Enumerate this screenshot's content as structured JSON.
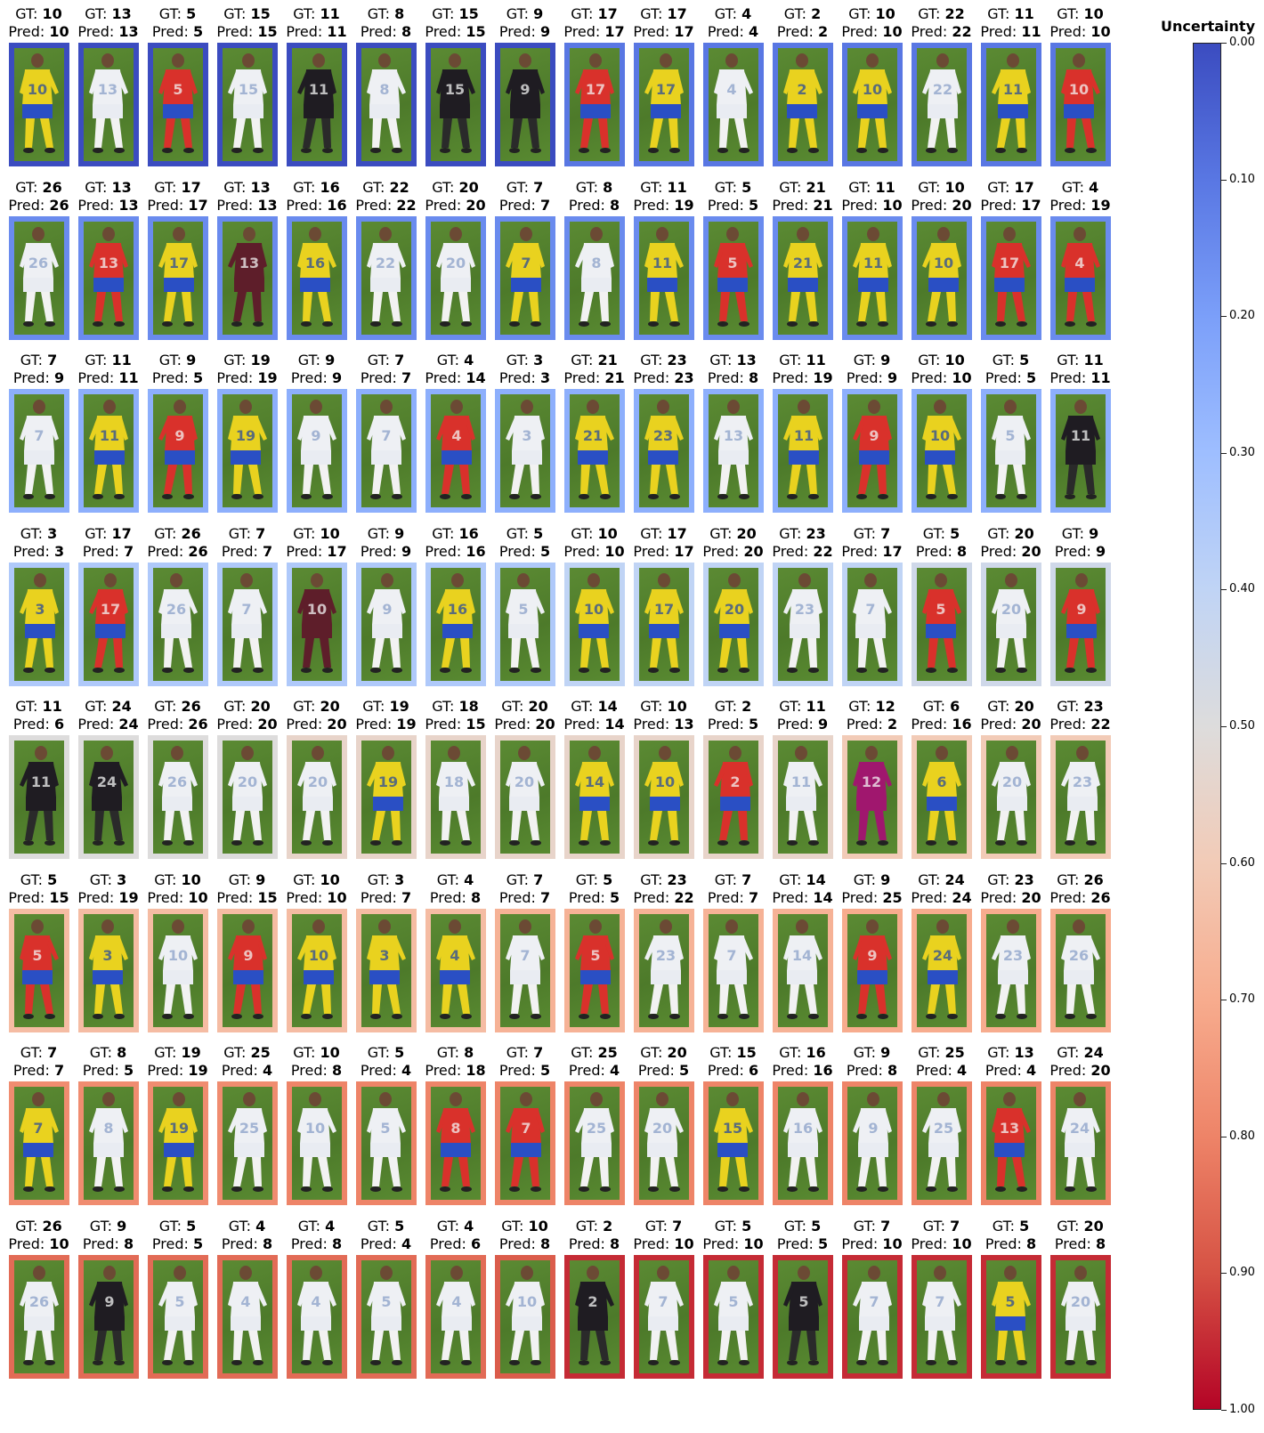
{
  "chart_data": {
    "type": "image-grid",
    "colorbar": {
      "title": "Uncertainty",
      "range": [
        0,
        1
      ],
      "ticks": [
        "0.00",
        "0.10",
        "0.20",
        "0.30",
        "0.40",
        "0.50",
        "0.60",
        "0.70",
        "0.80",
        "0.90",
        "1.00"
      ],
      "colormap": [
        "#3b4cc0",
        "#5977e3",
        "#7b9ff9",
        "#9ebeff",
        "#c0d4f5",
        "#dddcdc",
        "#f2cbb7",
        "#f7ac8e",
        "#ee8468",
        "#d65244",
        "#b40426"
      ]
    },
    "label_prefix_gt": "GT: ",
    "label_prefix_pred": "Pred: ",
    "rows": [
      {
        "uncertainty": [
          0.0,
          0.0,
          0.0,
          0.0,
          0.0,
          0.0,
          0.0,
          0.0,
          0.1,
          0.1,
          0.1,
          0.1,
          0.1,
          0.1,
          0.1,
          0.1
        ],
        "items": [
          {
            "gt": "10",
            "pred": "10",
            "kit": "yellow"
          },
          {
            "gt": "13",
            "pred": "13",
            "kit": "white"
          },
          {
            "gt": "5",
            "pred": "5",
            "kit": "red"
          },
          {
            "gt": "15",
            "pred": "15",
            "kit": "white"
          },
          {
            "gt": "11",
            "pred": "11",
            "kit": "black"
          },
          {
            "gt": "8",
            "pred": "8",
            "kit": "white"
          },
          {
            "gt": "15",
            "pred": "15",
            "kit": "black"
          },
          {
            "gt": "9",
            "pred": "9",
            "kit": "black"
          },
          {
            "gt": "17",
            "pred": "17",
            "kit": "red"
          },
          {
            "gt": "17",
            "pred": "17",
            "kit": "yellow"
          },
          {
            "gt": "4",
            "pred": "4",
            "kit": "white"
          },
          {
            "gt": "2",
            "pred": "2",
            "kit": "yellow"
          },
          {
            "gt": "10",
            "pred": "10",
            "kit": "yellow"
          },
          {
            "gt": "22",
            "pred": "22",
            "kit": "white"
          },
          {
            "gt": "11",
            "pred": "11",
            "kit": "yellow"
          },
          {
            "gt": "10",
            "pred": "10",
            "kit": "red"
          }
        ]
      },
      {
        "uncertainty": [
          0.15,
          0.15,
          0.15,
          0.15,
          0.15,
          0.15,
          0.15,
          0.15,
          0.15,
          0.15,
          0.15,
          0.15,
          0.15,
          0.15,
          0.15,
          0.15
        ],
        "items": [
          {
            "gt": "26",
            "pred": "26",
            "kit": "white"
          },
          {
            "gt": "13",
            "pred": "13",
            "kit": "red"
          },
          {
            "gt": "17",
            "pred": "17",
            "kit": "yellow"
          },
          {
            "gt": "13",
            "pred": "13",
            "kit": "maroon"
          },
          {
            "gt": "16",
            "pred": "16",
            "kit": "yellow"
          },
          {
            "gt": "22",
            "pred": "22",
            "kit": "white"
          },
          {
            "gt": "20",
            "pred": "20",
            "kit": "white"
          },
          {
            "gt": "7",
            "pred": "7",
            "kit": "yellow"
          },
          {
            "gt": "8",
            "pred": "8",
            "kit": "white"
          },
          {
            "gt": "11",
            "pred": "19",
            "kit": "yellow"
          },
          {
            "gt": "5",
            "pred": "5",
            "kit": "red"
          },
          {
            "gt": "21",
            "pred": "21",
            "kit": "yellow"
          },
          {
            "gt": "11",
            "pred": "10",
            "kit": "yellow"
          },
          {
            "gt": "10",
            "pred": "20",
            "kit": "yellow"
          },
          {
            "gt": "17",
            "pred": "17",
            "kit": "red"
          },
          {
            "gt": "4",
            "pred": "19",
            "kit": "red"
          }
        ]
      },
      {
        "uncertainty": [
          0.25,
          0.25,
          0.25,
          0.25,
          0.25,
          0.25,
          0.25,
          0.25,
          0.25,
          0.25,
          0.25,
          0.25,
          0.25,
          0.25,
          0.25,
          0.25
        ],
        "items": [
          {
            "gt": "7",
            "pred": "9",
            "kit": "white"
          },
          {
            "gt": "11",
            "pred": "11",
            "kit": "yellow"
          },
          {
            "gt": "9",
            "pred": "5",
            "kit": "red"
          },
          {
            "gt": "19",
            "pred": "19",
            "kit": "yellow"
          },
          {
            "gt": "9",
            "pred": "9",
            "kit": "white"
          },
          {
            "gt": "7",
            "pred": "7",
            "kit": "white"
          },
          {
            "gt": "4",
            "pred": "14",
            "kit": "red"
          },
          {
            "gt": "3",
            "pred": "3",
            "kit": "white"
          },
          {
            "gt": "21",
            "pred": "21",
            "kit": "yellow"
          },
          {
            "gt": "23",
            "pred": "23",
            "kit": "yellow"
          },
          {
            "gt": "13",
            "pred": "8",
            "kit": "white"
          },
          {
            "gt": "11",
            "pred": "19",
            "kit": "yellow"
          },
          {
            "gt": "9",
            "pred": "9",
            "kit": "red"
          },
          {
            "gt": "10",
            "pred": "10",
            "kit": "yellow"
          },
          {
            "gt": "5",
            "pred": "5",
            "kit": "white"
          },
          {
            "gt": "11",
            "pred": "11",
            "kit": "black"
          }
        ]
      },
      {
        "uncertainty": [
          0.35,
          0.35,
          0.35,
          0.35,
          0.35,
          0.35,
          0.35,
          0.35,
          0.4,
          0.4,
          0.4,
          0.4,
          0.4,
          0.45,
          0.45,
          0.45
        ],
        "items": [
          {
            "gt": "3",
            "pred": "3",
            "kit": "yellow"
          },
          {
            "gt": "17",
            "pred": "7",
            "kit": "red"
          },
          {
            "gt": "26",
            "pred": "26",
            "kit": "white"
          },
          {
            "gt": "7",
            "pred": "7",
            "kit": "white"
          },
          {
            "gt": "10",
            "pred": "17",
            "kit": "maroon"
          },
          {
            "gt": "9",
            "pred": "9",
            "kit": "white"
          },
          {
            "gt": "16",
            "pred": "16",
            "kit": "yellow"
          },
          {
            "gt": "5",
            "pred": "5",
            "kit": "white"
          },
          {
            "gt": "10",
            "pred": "10",
            "kit": "yellow"
          },
          {
            "gt": "17",
            "pred": "17",
            "kit": "yellow"
          },
          {
            "gt": "20",
            "pred": "20",
            "kit": "yellow"
          },
          {
            "gt": "23",
            "pred": "22",
            "kit": "white"
          },
          {
            "gt": "7",
            "pred": "17",
            "kit": "white"
          },
          {
            "gt": "5",
            "pred": "8",
            "kit": "red"
          },
          {
            "gt": "20",
            "pred": "20",
            "kit": "white"
          },
          {
            "gt": "9",
            "pred": "9",
            "kit": "red"
          }
        ]
      },
      {
        "uncertainty": [
          0.5,
          0.5,
          0.5,
          0.5,
          0.55,
          0.55,
          0.55,
          0.55,
          0.55,
          0.55,
          0.55,
          0.55,
          0.6,
          0.6,
          0.6,
          0.6
        ],
        "items": [
          {
            "gt": "11",
            "pred": "6",
            "kit": "black"
          },
          {
            "gt": "24",
            "pred": "24",
            "kit": "black"
          },
          {
            "gt": "26",
            "pred": "26",
            "kit": "white"
          },
          {
            "gt": "20",
            "pred": "20",
            "kit": "white"
          },
          {
            "gt": "20",
            "pred": "20",
            "kit": "white"
          },
          {
            "gt": "19",
            "pred": "19",
            "kit": "yellow"
          },
          {
            "gt": "18",
            "pred": "15",
            "kit": "white"
          },
          {
            "gt": "20",
            "pred": "20",
            "kit": "white"
          },
          {
            "gt": "14",
            "pred": "14",
            "kit": "yellow"
          },
          {
            "gt": "10",
            "pred": "13",
            "kit": "yellow"
          },
          {
            "gt": "2",
            "pred": "5",
            "kit": "red"
          },
          {
            "gt": "11",
            "pred": "9",
            "kit": "white"
          },
          {
            "gt": "12",
            "pred": "2",
            "kit": "magenta"
          },
          {
            "gt": "6",
            "pred": "16",
            "kit": "yellow"
          },
          {
            "gt": "20",
            "pred": "20",
            "kit": "white"
          },
          {
            "gt": "23",
            "pred": "22",
            "kit": "white"
          }
        ]
      },
      {
        "uncertainty": [
          0.65,
          0.65,
          0.65,
          0.65,
          0.65,
          0.65,
          0.65,
          0.68,
          0.68,
          0.68,
          0.68,
          0.68,
          0.7,
          0.7,
          0.7,
          0.7
        ],
        "items": [
          {
            "gt": "5",
            "pred": "15",
            "kit": "red"
          },
          {
            "gt": "3",
            "pred": "19",
            "kit": "yellow"
          },
          {
            "gt": "10",
            "pred": "10",
            "kit": "white"
          },
          {
            "gt": "9",
            "pred": "15",
            "kit": "red"
          },
          {
            "gt": "10",
            "pred": "10",
            "kit": "yellow"
          },
          {
            "gt": "3",
            "pred": "7",
            "kit": "yellow"
          },
          {
            "gt": "4",
            "pred": "8",
            "kit": "yellow"
          },
          {
            "gt": "7",
            "pred": "7",
            "kit": "white"
          },
          {
            "gt": "5",
            "pred": "5",
            "kit": "red"
          },
          {
            "gt": "23",
            "pred": "22",
            "kit": "white"
          },
          {
            "gt": "7",
            "pred": "7",
            "kit": "white"
          },
          {
            "gt": "14",
            "pred": "14",
            "kit": "white"
          },
          {
            "gt": "9",
            "pred": "25",
            "kit": "red"
          },
          {
            "gt": "24",
            "pred": "24",
            "kit": "yellow"
          },
          {
            "gt": "23",
            "pred": "20",
            "kit": "white"
          },
          {
            "gt": "26",
            "pred": "26",
            "kit": "white"
          }
        ]
      },
      {
        "uncertainty": [
          0.78,
          0.78,
          0.78,
          0.78,
          0.8,
          0.8,
          0.8,
          0.8,
          0.8,
          0.8,
          0.8,
          0.8,
          0.8,
          0.8,
          0.8,
          0.8
        ],
        "items": [
          {
            "gt": "7",
            "pred": "7",
            "kit": "yellow"
          },
          {
            "gt": "8",
            "pred": "5",
            "kit": "white"
          },
          {
            "gt": "19",
            "pred": "19",
            "kit": "yellow"
          },
          {
            "gt": "25",
            "pred": "4",
            "kit": "white"
          },
          {
            "gt": "10",
            "pred": "8",
            "kit": "white"
          },
          {
            "gt": "5",
            "pred": "4",
            "kit": "white"
          },
          {
            "gt": "8",
            "pred": "18",
            "kit": "red"
          },
          {
            "gt": "7",
            "pred": "5",
            "kit": "red"
          },
          {
            "gt": "25",
            "pred": "4",
            "kit": "white"
          },
          {
            "gt": "20",
            "pred": "5",
            "kit": "white"
          },
          {
            "gt": "15",
            "pred": "6",
            "kit": "yellow"
          },
          {
            "gt": "16",
            "pred": "16",
            "kit": "white"
          },
          {
            "gt": "9",
            "pred": "8",
            "kit": "white"
          },
          {
            "gt": "25",
            "pred": "4",
            "kit": "white"
          },
          {
            "gt": "13",
            "pred": "4",
            "kit": "red"
          },
          {
            "gt": "24",
            "pred": "20",
            "kit": "white"
          }
        ]
      },
      {
        "uncertainty": [
          0.85,
          0.85,
          0.85,
          0.85,
          0.85,
          0.85,
          0.85,
          0.88,
          0.95,
          0.95,
          0.95,
          0.95,
          0.95,
          0.95,
          0.95,
          0.95
        ],
        "items": [
          {
            "gt": "26",
            "pred": "10",
            "kit": "white"
          },
          {
            "gt": "9",
            "pred": "8",
            "kit": "black"
          },
          {
            "gt": "5",
            "pred": "5",
            "kit": "white"
          },
          {
            "gt": "4",
            "pred": "8",
            "kit": "white"
          },
          {
            "gt": "4",
            "pred": "8",
            "kit": "white"
          },
          {
            "gt": "5",
            "pred": "4",
            "kit": "white"
          },
          {
            "gt": "4",
            "pred": "6",
            "kit": "white"
          },
          {
            "gt": "10",
            "pred": "8",
            "kit": "white"
          },
          {
            "gt": "2",
            "pred": "8",
            "kit": "black"
          },
          {
            "gt": "7",
            "pred": "10",
            "kit": "white"
          },
          {
            "gt": "5",
            "pred": "10",
            "kit": "white"
          },
          {
            "gt": "5",
            "pred": "5",
            "kit": "black"
          },
          {
            "gt": "7",
            "pred": "10",
            "kit": "white"
          },
          {
            "gt": "7",
            "pred": "10",
            "kit": "white"
          },
          {
            "gt": "5",
            "pred": "8",
            "kit": "yellow"
          },
          {
            "gt": "20",
            "pred": "8",
            "kit": "white"
          }
        ]
      }
    ]
  }
}
